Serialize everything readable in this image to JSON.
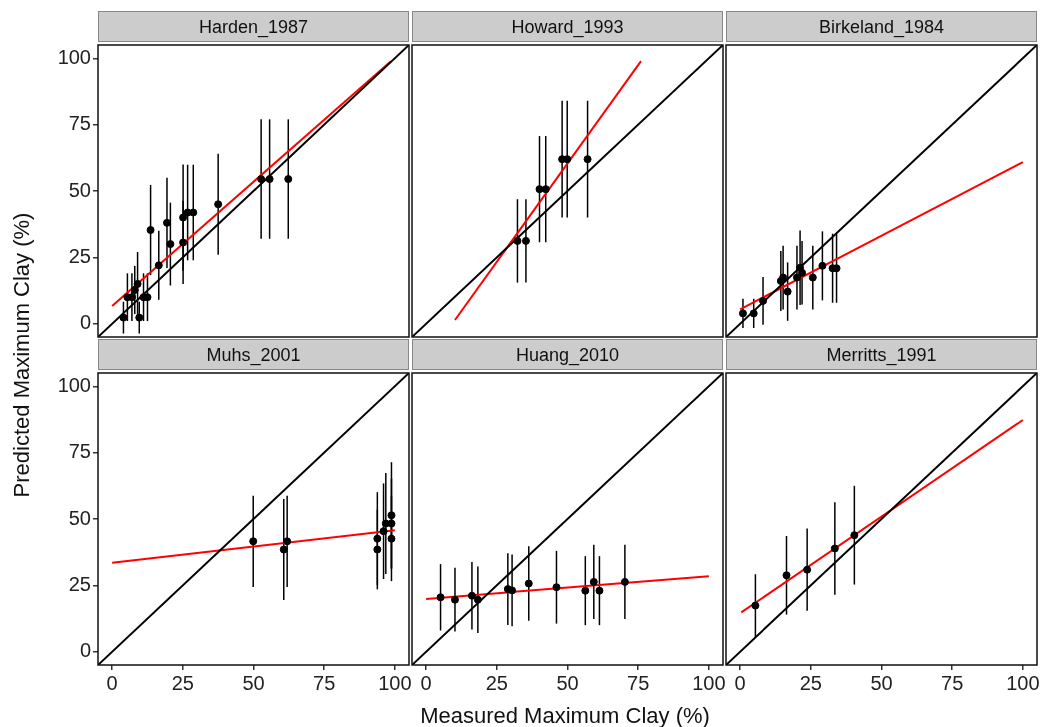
{
  "chart_data": [
    {
      "type": "scatter",
      "title": "Harden_1987",
      "tick_labels": "y",
      "xlim": [
        -5,
        105
      ],
      "ylim": [
        -5,
        105
      ],
      "xticks": [
        0,
        25,
        50,
        75,
        100
      ],
      "yticks": [
        0,
        25,
        50,
        75,
        100
      ],
      "series": [
        {
          "type": "scatter",
          "marker": "circle",
          "color": "#000000",
          "x": [
            4,
            5.4,
            7.0,
            8.0,
            9.0,
            9.6,
            11.1,
            12.5,
            13.6,
            16.5,
            19.4,
            20.6,
            25.1,
            25.1,
            26.7,
            28.7,
            37.5,
            52.7,
            55.7,
            62.3
          ],
          "values": [
            2.3,
            10,
            10,
            12.7,
            15,
            2.3,
            10,
            10,
            35.3,
            22,
            38,
            30,
            40,
            30.6,
            41.9,
            41.9,
            45,
            54.5,
            54.5,
            54.5
          ],
          "errors": [
            6,
            9,
            9,
            9,
            12,
            6,
            9,
            9,
            17,
            13,
            17,
            15.6,
            20,
            15.6,
            18,
            18,
            19,
            22.5,
            22.5,
            22.5
          ]
        },
        {
          "type": "line",
          "marker": "none",
          "color": "#000000",
          "x": [
            -5,
            105
          ],
          "values": [
            -5,
            105
          ]
        },
        {
          "type": "line",
          "marker": "none",
          "color": "#ff0000",
          "x": [
            0,
            98.6
          ],
          "values": [
            6.7,
            98.9
          ]
        }
      ]
    },
    {
      "type": "scatter",
      "title": "Howard_1993",
      "tick_labels": false,
      "xlim": [
        -5,
        105
      ],
      "ylim": [
        -5,
        105
      ],
      "xticks": [
        0,
        25,
        50,
        75,
        100
      ],
      "yticks": [
        0,
        25,
        50,
        75,
        100
      ],
      "series": [
        {
          "type": "scatter",
          "marker": "circle",
          "color": "#000000",
          "x": [
            32.3,
            35.3,
            40.1,
            42.3,
            48.1,
            49.9,
            57.1
          ],
          "values": [
            31.2,
            31.2,
            50.7,
            50.7,
            62,
            62,
            62
          ],
          "errors": [
            15.7,
            15.7,
            20,
            20,
            22,
            22,
            22
          ]
        },
        {
          "type": "line",
          "marker": "none",
          "color": "#000000",
          "x": [
            -5,
            105
          ],
          "values": [
            -5,
            105
          ]
        },
        {
          "type": "line",
          "marker": "none",
          "color": "#ff0000",
          "x": [
            10.2,
            76
          ],
          "values": [
            1.4,
            98.9
          ]
        }
      ]
    },
    {
      "type": "scatter",
      "title": "Birkeland_1984",
      "tick_labels": false,
      "xlim": [
        -5,
        105
      ],
      "ylim": [
        -5,
        105
      ],
      "xticks": [
        0,
        25,
        50,
        75,
        100
      ],
      "yticks": [
        0,
        25,
        50,
        75,
        100
      ],
      "series": [
        {
          "type": "scatter",
          "marker": "circle",
          "color": "#000000",
          "x": [
            1,
            4.8,
            8.1,
            14.4,
            15.2,
            16.8,
            20.1,
            21.2,
            21.9,
            25.7,
            29.1,
            32.7,
            34.1
          ],
          "values": [
            3.9,
            3.9,
            8.6,
            16.1,
            17.4,
            12.1,
            17.4,
            21.1,
            19.2,
            17.4,
            21.8,
            20.9,
            20.9
          ],
          "errors": [
            5.5,
            5.5,
            9,
            11.3,
            12,
            11,
            12,
            14,
            12,
            12,
            13,
            13,
            13
          ]
        },
        {
          "type": "line",
          "marker": "none",
          "color": "#000000",
          "x": [
            -5,
            105
          ],
          "values": [
            -5,
            105
          ]
        },
        {
          "type": "line",
          "marker": "none",
          "color": "#ff0000",
          "x": [
            0,
            100
          ],
          "values": [
            5.4,
            60.9
          ]
        }
      ]
    },
    {
      "type": "scatter",
      "title": "Muhs_2001",
      "ylabel": "Predicted Maximum Clay (%)",
      "xlim": [
        -5,
        105
      ],
      "ylim": [
        -5,
        105
      ],
      "xticks": [
        0,
        25,
        50,
        75,
        100
      ],
      "yticks": [
        0,
        25,
        50,
        75,
        100
      ],
      "series": [
        {
          "type": "scatter",
          "marker": "circle",
          "color": "#000000",
          "x": [
            49.9,
            60.7,
            61.9,
            93.8,
            93.8,
            96,
            96.8,
            98.8,
            98.8,
            98.8
          ],
          "values": [
            41.6,
            38.5,
            41.6,
            42.6,
            38.5,
            45.4,
            48.3,
            51.4,
            48.3,
            42.6
          ],
          "errors": [
            17.2,
            19,
            17.2,
            17.5,
            15,
            18,
            19,
            20,
            17,
            16
          ]
        },
        {
          "type": "line",
          "marker": "none",
          "color": "#000000",
          "x": [
            -5,
            105
          ],
          "values": [
            -5,
            105
          ]
        },
        {
          "type": "line",
          "marker": "none",
          "color": "#ff0000",
          "x": [
            0,
            100
          ],
          "values": [
            33.5,
            45.8
          ]
        }
      ]
    },
    {
      "type": "scatter",
      "title": "Huang_2010",
      "xlabel": "Measured Maximum Clay (%)",
      "tick_labels": "x",
      "xlim": [
        -5,
        105
      ],
      "ylim": [
        -5,
        105
      ],
      "xticks": [
        0,
        25,
        50,
        75,
        100
      ],
      "yticks": [
        0,
        25,
        50,
        75,
        100
      ],
      "series": [
        {
          "type": "scatter",
          "marker": "circle",
          "color": "#000000",
          "x": [
            5.1,
            10.2,
            16.2,
            18.3,
            28.9,
            30.4,
            36.3,
            46.1,
            56.3,
            59.3,
            61.3,
            70.3
          ],
          "values": [
            20.5,
            19.6,
            21.1,
            19.6,
            23.6,
            23.1,
            25.7,
            24.3,
            23,
            26.3,
            23,
            26.3
          ],
          "errors": [
            12.5,
            12,
            12.7,
            12.5,
            13.5,
            13.5,
            14,
            13.7,
            13,
            14,
            13,
            14
          ]
        },
        {
          "type": "line",
          "marker": "none",
          "color": "#000000",
          "x": [
            -5,
            105
          ],
          "values": [
            -5,
            105
          ]
        },
        {
          "type": "line",
          "marker": "none",
          "color": "#ff0000",
          "x": [
            0,
            100
          ],
          "values": [
            19.9,
            28.4
          ]
        }
      ]
    },
    {
      "type": "scatter",
      "title": "Merritts_1991",
      "tick_labels": "x",
      "xlim": [
        -5,
        105
      ],
      "ylim": [
        -5,
        105
      ],
      "xticks": [
        0,
        25,
        50,
        75,
        100
      ],
      "yticks": [
        0,
        25,
        50,
        75,
        100
      ],
      "series": [
        {
          "type": "scatter",
          "marker": "circle",
          "color": "#000000",
          "x": [
            5.4,
            16.4,
            23.7,
            33.5,
            40.4
          ],
          "values": [
            17.4,
            28.8,
            30.9,
            38.9,
            43.9
          ],
          "errors": [
            11.8,
            14.8,
            15.5,
            17.4,
            18.6
          ]
        },
        {
          "type": "line",
          "marker": "none",
          "color": "#000000",
          "x": [
            -5,
            105
          ],
          "values": [
            -5,
            105
          ]
        },
        {
          "type": "line",
          "marker": "none",
          "color": "#ff0000",
          "x": [
            0.4,
            100
          ],
          "values": [
            14.8,
            87.3
          ]
        }
      ]
    }
  ]
}
